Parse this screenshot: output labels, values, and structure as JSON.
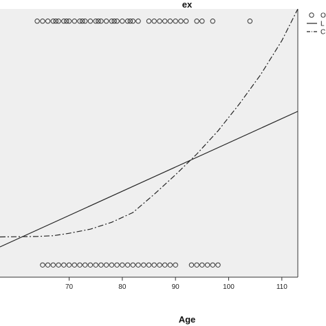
{
  "chart_data": {
    "type": "scatter",
    "title": "ex",
    "xlabel": "Age",
    "ylabel": "",
    "xlim": [
      57,
      113
    ],
    "ylim": [
      -0.05,
      1.05
    ],
    "x_ticks": [
      70,
      80,
      90,
      100,
      110
    ],
    "grid": false,
    "legend_position": "top-right",
    "background_color": "#efefef",
    "legend": [
      {
        "marker": "circle",
        "label": "O"
      },
      {
        "marker": "solid-line",
        "label": "L"
      },
      {
        "marker": "dash-dot-line",
        "label": "C"
      }
    ],
    "series": [
      {
        "marker": "circle",
        "x_at_y1": [
          64,
          65,
          66,
          67,
          67.5,
          68,
          69,
          69.5,
          70,
          71,
          72,
          72.5,
          73,
          74,
          75,
          75.5,
          76,
          77,
          78,
          78.5,
          79,
          80,
          81,
          81.5,
          82,
          83,
          85,
          86,
          87,
          88,
          89,
          90,
          91,
          92,
          94,
          95,
          97,
          104
        ],
        "x_at_y0": [
          65,
          66,
          67,
          68,
          69,
          70,
          71,
          72,
          73,
          74,
          75,
          76,
          77,
          78,
          79,
          80,
          81,
          82,
          83,
          84,
          85,
          86,
          87,
          88,
          89,
          90,
          93,
          94,
          95,
          96,
          97,
          98
        ]
      },
      {
        "marker": "solid-line",
        "x": [
          57,
          113
        ],
        "y": [
          0.074,
          0.63
        ]
      },
      {
        "marker": "dash-dot-line",
        "x": [
          57,
          64,
          67,
          70,
          74,
          78,
          82,
          86,
          90,
          94,
          98,
          102,
          106,
          110,
          113
        ],
        "y": [
          0.115,
          0.117,
          0.12,
          0.13,
          0.147,
          0.175,
          0.215,
          0.29,
          0.37,
          0.455,
          0.55,
          0.66,
          0.78,
          0.92,
          1.05
        ]
      }
    ]
  }
}
